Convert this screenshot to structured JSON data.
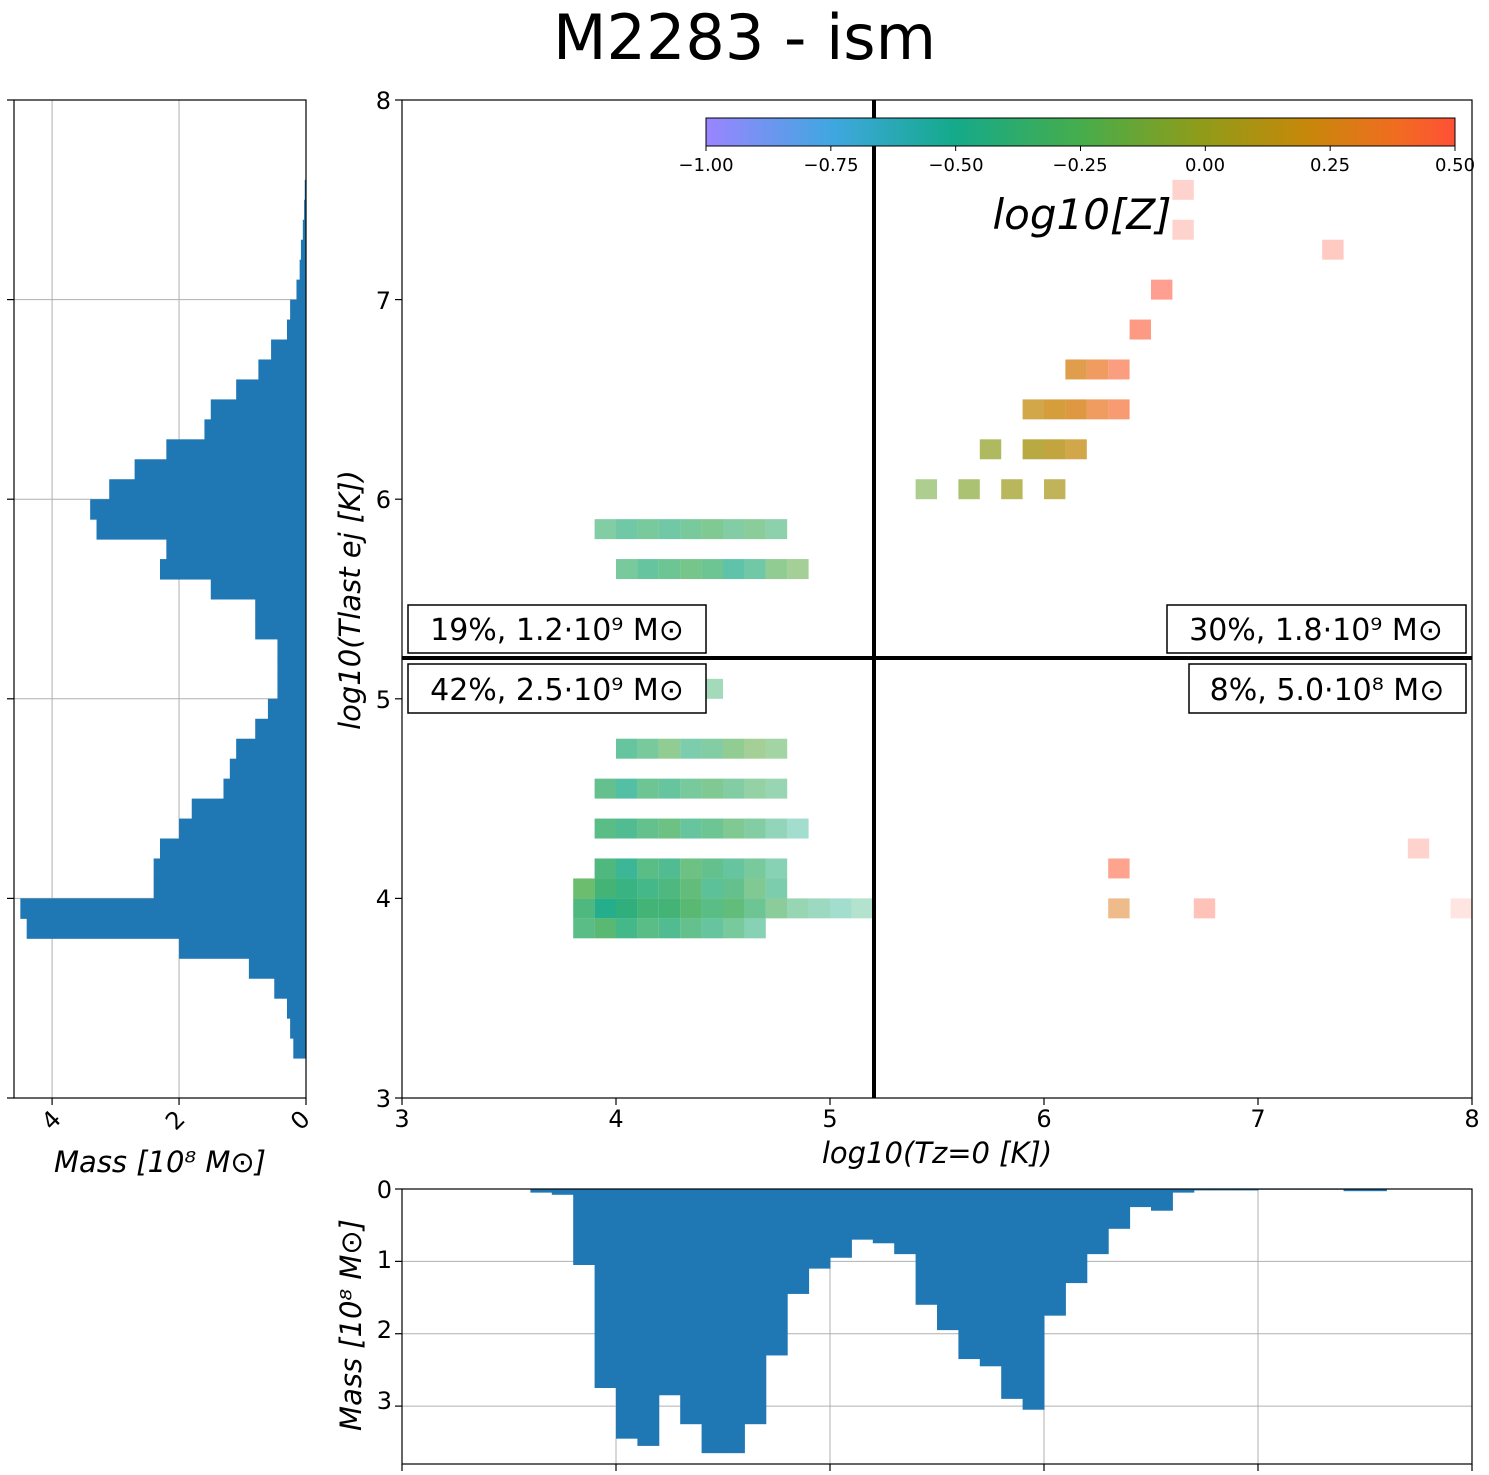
{
  "title": "M2283 - ism",
  "colors": {
    "hist_fill": "#1f77b4",
    "grid": "#b0b0b0",
    "divider": "#000000"
  },
  "chart_data": [
    {
      "type": "heatmap",
      "name": "main",
      "xlabel": "log10(Tz=0 [K])",
      "ylabel": "log10(Tlast ej [K])",
      "xlim": [
        3,
        8
      ],
      "ylim": [
        3,
        8
      ],
      "xticks": [
        "3",
        "4",
        "5",
        "6",
        "7",
        "8"
      ],
      "yticks": [
        "3",
        "4",
        "5",
        "6",
        "7",
        "8"
      ],
      "bin_width": 0.1,
      "divider_x": 5.2,
      "divider_y": 5.2,
      "colorbar": {
        "label": "log10[Z]",
        "range": [
          -1.0,
          0.5
        ],
        "ticks": [
          "−1.00",
          "−0.75",
          "−0.50",
          "−0.25",
          "0.00",
          "0.25",
          "0.50"
        ],
        "colormap": [
          "#9a85ff",
          "#3fa7e0",
          "#14aa8b",
          "#46ad4c",
          "#8f9c1a",
          "#c6880a",
          "#f06d20",
          "#ff5036"
        ]
      },
      "quadrants": [
        {
          "label": "19%, 1.2·10⁹ M⊙",
          "position": "upper-left"
        },
        {
          "label": "30%, 1.8·10⁹ M⊙",
          "position": "upper-right"
        },
        {
          "label": "42%, 2.5·10⁹ M⊙",
          "position": "lower-left"
        },
        {
          "label": "8%, 5.0·10⁸ M⊙",
          "position": "lower-right"
        }
      ],
      "cells": {
        "columns": [
          "log10_T_z0",
          "log10_T_last_ej",
          "log10_Z",
          "opacity"
        ],
        "rows": [
          [
            3.85,
            3.95,
            -0.45,
            0.85
          ],
          [
            3.95,
            3.95,
            -0.55,
            0.95
          ],
          [
            4.05,
            3.95,
            -0.5,
            0.95
          ],
          [
            4.15,
            3.95,
            -0.45,
            0.9
          ],
          [
            4.25,
            3.95,
            -0.45,
            0.9
          ],
          [
            4.35,
            3.95,
            -0.4,
            0.85
          ],
          [
            4.45,
            3.95,
            -0.45,
            0.8
          ],
          [
            4.55,
            3.95,
            -0.4,
            0.8
          ],
          [
            4.65,
            3.95,
            -0.45,
            0.7
          ],
          [
            4.75,
            3.95,
            -0.4,
            0.6
          ],
          [
            4.85,
            3.95,
            -0.45,
            0.5
          ],
          [
            4.95,
            3.95,
            -0.5,
            0.45
          ],
          [
            5.05,
            3.95,
            -0.55,
            0.4
          ],
          [
            5.15,
            3.95,
            -0.5,
            0.35
          ],
          [
            3.85,
            4.05,
            -0.35,
            0.8
          ],
          [
            3.95,
            4.05,
            -0.45,
            0.9
          ],
          [
            4.05,
            4.05,
            -0.5,
            0.9
          ],
          [
            4.15,
            4.05,
            -0.5,
            0.85
          ],
          [
            4.25,
            4.05,
            -0.45,
            0.85
          ],
          [
            4.35,
            4.05,
            -0.4,
            0.8
          ],
          [
            4.45,
            4.05,
            -0.5,
            0.75
          ],
          [
            4.55,
            4.05,
            -0.45,
            0.75
          ],
          [
            4.65,
            4.05,
            -0.4,
            0.65
          ],
          [
            4.75,
            4.05,
            -0.5,
            0.6
          ],
          [
            3.85,
            3.85,
            -0.45,
            0.8
          ],
          [
            3.95,
            3.85,
            -0.4,
            0.85
          ],
          [
            4.05,
            3.85,
            -0.5,
            0.85
          ],
          [
            4.15,
            3.85,
            -0.45,
            0.8
          ],
          [
            4.25,
            3.85,
            -0.5,
            0.8
          ],
          [
            4.35,
            3.85,
            -0.45,
            0.75
          ],
          [
            4.45,
            3.85,
            -0.5,
            0.7
          ],
          [
            4.55,
            3.85,
            -0.45,
            0.65
          ],
          [
            4.65,
            3.85,
            -0.5,
            0.55
          ],
          [
            3.95,
            4.15,
            -0.45,
            0.85
          ],
          [
            4.05,
            4.15,
            -0.55,
            0.85
          ],
          [
            4.15,
            4.15,
            -0.45,
            0.8
          ],
          [
            4.25,
            4.15,
            -0.5,
            0.8
          ],
          [
            4.35,
            4.15,
            -0.4,
            0.75
          ],
          [
            4.45,
            4.15,
            -0.45,
            0.75
          ],
          [
            4.55,
            4.15,
            -0.5,
            0.7
          ],
          [
            4.65,
            4.15,
            -0.45,
            0.65
          ],
          [
            4.75,
            4.15,
            -0.5,
            0.55
          ],
          [
            3.95,
            4.35,
            -0.45,
            0.8
          ],
          [
            4.05,
            4.35,
            -0.5,
            0.8
          ],
          [
            4.15,
            4.35,
            -0.45,
            0.75
          ],
          [
            4.25,
            4.35,
            -0.4,
            0.75
          ],
          [
            4.35,
            4.35,
            -0.5,
            0.7
          ],
          [
            4.45,
            4.35,
            -0.45,
            0.7
          ],
          [
            4.55,
            4.35,
            -0.4,
            0.65
          ],
          [
            4.65,
            4.35,
            -0.45,
            0.6
          ],
          [
            4.75,
            4.35,
            -0.5,
            0.5
          ],
          [
            4.85,
            4.35,
            -0.55,
            0.4
          ],
          [
            3.95,
            4.55,
            -0.45,
            0.75
          ],
          [
            4.05,
            4.55,
            -0.55,
            0.75
          ],
          [
            4.15,
            4.55,
            -0.45,
            0.7
          ],
          [
            4.25,
            4.55,
            -0.5,
            0.7
          ],
          [
            4.35,
            4.55,
            -0.45,
            0.65
          ],
          [
            4.45,
            4.55,
            -0.4,
            0.65
          ],
          [
            4.55,
            4.55,
            -0.45,
            0.6
          ],
          [
            4.65,
            4.55,
            -0.4,
            0.55
          ],
          [
            4.75,
            4.55,
            -0.45,
            0.5
          ],
          [
            4.05,
            4.75,
            -0.5,
            0.7
          ],
          [
            4.15,
            4.75,
            -0.45,
            0.65
          ],
          [
            4.25,
            4.75,
            -0.35,
            0.6
          ],
          [
            4.35,
            4.75,
            -0.5,
            0.6
          ],
          [
            4.45,
            4.75,
            -0.45,
            0.6
          ],
          [
            4.55,
            4.75,
            -0.35,
            0.6
          ],
          [
            4.65,
            4.75,
            -0.3,
            0.55
          ],
          [
            4.75,
            4.75,
            -0.35,
            0.5
          ],
          [
            4.15,
            5.05,
            -0.6,
            0.55
          ],
          [
            4.25,
            5.05,
            -0.45,
            0.5
          ],
          [
            4.35,
            5.05,
            -0.5,
            0.5
          ],
          [
            4.45,
            5.05,
            -0.45,
            0.45
          ],
          [
            4.05,
            5.65,
            -0.45,
            0.65
          ],
          [
            4.15,
            5.65,
            -0.5,
            0.7
          ],
          [
            4.25,
            5.65,
            -0.45,
            0.7
          ],
          [
            4.35,
            5.65,
            -0.4,
            0.7
          ],
          [
            4.45,
            5.65,
            -0.45,
            0.7
          ],
          [
            4.55,
            5.65,
            -0.55,
            0.7
          ],
          [
            4.65,
            5.65,
            -0.5,
            0.65
          ],
          [
            4.75,
            5.65,
            -0.35,
            0.6
          ],
          [
            4.85,
            5.65,
            -0.3,
            0.55
          ],
          [
            3.95,
            5.85,
            -0.45,
            0.6
          ],
          [
            4.05,
            5.85,
            -0.5,
            0.65
          ],
          [
            4.15,
            5.85,
            -0.45,
            0.65
          ],
          [
            4.25,
            5.85,
            -0.5,
            0.65
          ],
          [
            4.35,
            5.85,
            -0.45,
            0.65
          ],
          [
            4.45,
            5.85,
            -0.4,
            0.65
          ],
          [
            4.55,
            5.85,
            -0.45,
            0.6
          ],
          [
            4.65,
            5.85,
            -0.4,
            0.6
          ],
          [
            4.75,
            5.85,
            -0.45,
            0.55
          ],
          [
            5.45,
            6.05,
            -0.25,
            0.55
          ],
          [
            5.65,
            6.05,
            -0.2,
            0.65
          ],
          [
            5.85,
            6.05,
            -0.1,
            0.7
          ],
          [
            6.05,
            6.05,
            -0.05,
            0.7
          ],
          [
            5.75,
            6.25,
            -0.15,
            0.7
          ],
          [
            5.95,
            6.25,
            -0.05,
            0.8
          ],
          [
            6.05,
            6.25,
            0.0,
            0.8
          ],
          [
            6.15,
            6.25,
            0.05,
            0.75
          ],
          [
            5.95,
            6.45,
            0.05,
            0.75
          ],
          [
            6.05,
            6.45,
            0.1,
            0.8
          ],
          [
            6.15,
            6.45,
            0.15,
            0.8
          ],
          [
            6.25,
            6.45,
            0.25,
            0.7
          ],
          [
            6.35,
            6.45,
            0.35,
            0.65
          ],
          [
            6.15,
            6.65,
            0.15,
            0.75
          ],
          [
            6.25,
            6.65,
            0.25,
            0.7
          ],
          [
            6.35,
            6.65,
            0.4,
            0.6
          ],
          [
            6.45,
            6.85,
            0.45,
            0.6
          ],
          [
            6.55,
            7.05,
            0.5,
            0.55
          ],
          [
            6.65,
            7.55,
            0.5,
            0.25
          ],
          [
            6.65,
            7.35,
            0.5,
            0.25
          ],
          [
            7.35,
            7.25,
            0.5,
            0.3
          ],
          [
            6.35,
            3.95,
            0.2,
            0.5
          ],
          [
            6.75,
            3.95,
            0.5,
            0.35
          ],
          [
            7.95,
            3.95,
            0.5,
            0.15
          ],
          [
            7.75,
            4.25,
            0.5,
            0.25
          ],
          [
            6.35,
            4.15,
            0.45,
            0.55
          ]
        ]
      }
    },
    {
      "type": "bar",
      "name": "left-marginal",
      "orientation": "horizontal",
      "xlabel": "Mass [10⁸ M⊙]",
      "xlim": [
        0,
        4.6
      ],
      "xticks": [
        "4",
        "2",
        "0"
      ],
      "bin_width": 0.1,
      "y": [
        3.25,
        3.35,
        3.45,
        3.55,
        3.65,
        3.75,
        3.85,
        3.95,
        4.05,
        4.15,
        4.25,
        4.35,
        4.45,
        4.55,
        4.65,
        4.75,
        4.85,
        4.95,
        5.05,
        5.15,
        5.25,
        5.35,
        5.45,
        5.55,
        5.65,
        5.75,
        5.85,
        5.95,
        6.05,
        6.15,
        6.25,
        6.35,
        6.45,
        6.55,
        6.65,
        6.75,
        6.85,
        6.95,
        7.05,
        7.15,
        7.25,
        7.35,
        7.45,
        7.55
      ],
      "values": [
        0.2,
        0.25,
        0.3,
        0.5,
        0.9,
        2.0,
        4.4,
        4.5,
        2.4,
        2.4,
        2.3,
        2.0,
        1.8,
        1.3,
        1.2,
        1.1,
        0.8,
        0.6,
        0.45,
        0.45,
        0.45,
        0.8,
        0.8,
        1.5,
        2.3,
        2.2,
        3.3,
        3.4,
        3.1,
        2.7,
        2.2,
        1.6,
        1.5,
        1.1,
        0.75,
        0.55,
        0.3,
        0.25,
        0.15,
        0.1,
        0.08,
        0.05,
        0.03,
        0.02
      ]
    },
    {
      "type": "bar",
      "name": "bottom-marginal",
      "orientation": "vertical",
      "ylabel": "Mass [10⁸ M⊙]",
      "ylim": [
        3.8,
        0
      ],
      "yticks": [
        "0",
        "1",
        "2",
        "3"
      ],
      "bin_width": 0.1,
      "x": [
        3.65,
        3.75,
        3.85,
        3.95,
        4.05,
        4.15,
        4.25,
        4.35,
        4.45,
        4.55,
        4.65,
        4.75,
        4.85,
        4.95,
        5.05,
        5.15,
        5.25,
        5.35,
        5.45,
        5.55,
        5.65,
        5.75,
        5.85,
        5.95,
        6.05,
        6.15,
        6.25,
        6.35,
        6.45,
        6.55,
        6.65,
        6.75,
        6.85,
        6.95,
        7.05,
        7.15,
        7.25,
        7.35,
        7.45,
        7.55,
        7.65
      ],
      "values": [
        0.05,
        0.08,
        1.05,
        2.75,
        3.45,
        3.55,
        2.85,
        3.25,
        3.65,
        3.65,
        3.25,
        2.3,
        1.45,
        1.1,
        0.95,
        0.7,
        0.75,
        0.9,
        1.6,
        1.95,
        2.35,
        2.45,
        2.9,
        3.05,
        1.75,
        1.3,
        0.9,
        0.55,
        0.25,
        0.3,
        0.05,
        0.02,
        0.02,
        0.02,
        0.01,
        0.01,
        0.01,
        0.01,
        0.03,
        0.03,
        0.0
      ]
    }
  ]
}
